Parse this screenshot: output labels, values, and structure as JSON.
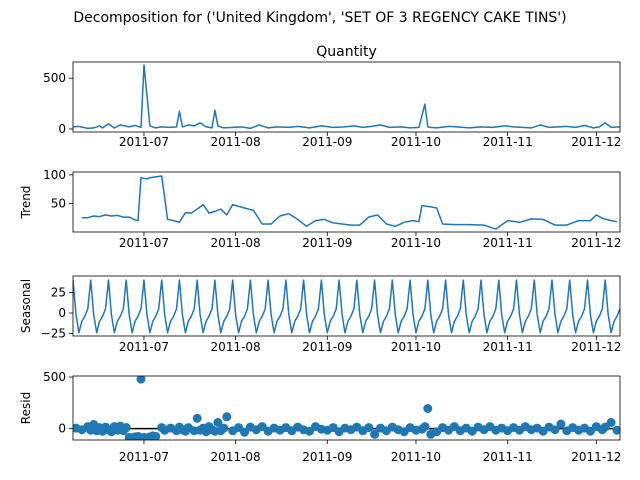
{
  "figure": {
    "suptitle": "Decomposition for ('United Kingdom', 'SET OF 3 REGENCY CAKE TINS')",
    "line_color": "#1f77b4",
    "x_ticks": [
      "2011-07",
      "2011-08",
      "2011-09",
      "2011-10",
      "2011-11",
      "2011-12"
    ]
  },
  "chart_data": [
    {
      "type": "line",
      "title": "Quantity",
      "ylabel": "",
      "x_range": [
        "2011-06-07",
        "2011-12-09"
      ],
      "ylim": [
        -30,
        660
      ],
      "yticks": [
        "0",
        "500"
      ],
      "ytick_values": [
        0,
        500
      ],
      "series": [
        {
          "x": [
            "2011-06-07",
            "2011-06-09",
            "2011-06-12",
            "2011-06-14",
            "2011-06-16",
            "2011-06-17",
            "2011-06-19",
            "2011-06-21",
            "2011-06-23",
            "2011-06-26",
            "2011-06-28",
            "2011-06-30",
            "2011-07-01",
            "2011-07-03",
            "2011-07-05",
            "2011-07-07",
            "2011-07-10",
            "2011-07-12",
            "2011-07-13",
            "2011-07-14",
            "2011-07-16",
            "2011-07-18",
            "2011-07-20",
            "2011-07-22",
            "2011-07-24",
            "2011-07-25",
            "2011-07-26",
            "2011-07-28",
            "2011-07-31",
            "2011-08-03",
            "2011-08-06",
            "2011-08-09",
            "2011-08-12",
            "2011-08-15",
            "2011-08-19",
            "2011-08-22",
            "2011-08-26",
            "2011-08-30",
            "2011-09-03",
            "2011-09-07",
            "2011-09-10",
            "2011-09-13",
            "2011-09-16",
            "2011-09-19",
            "2011-09-22",
            "2011-09-26",
            "2011-09-29",
            "2011-10-02",
            "2011-10-04",
            "2011-10-05",
            "2011-10-06",
            "2011-10-08",
            "2011-10-12",
            "2011-10-15",
            "2011-10-19",
            "2011-10-23",
            "2011-10-27",
            "2011-10-31",
            "2011-11-03",
            "2011-11-06",
            "2011-11-09",
            "2011-11-12",
            "2011-11-15",
            "2011-11-18",
            "2011-11-21",
            "2011-11-24",
            "2011-11-27",
            "2011-11-30",
            "2011-12-02",
            "2011-12-04",
            "2011-12-06",
            "2011-12-09"
          ],
          "y": [
            20,
            25,
            5,
            10,
            30,
            10,
            50,
            10,
            40,
            20,
            35,
            15,
            630,
            30,
            10,
            20,
            15,
            20,
            175,
            20,
            40,
            30,
            60,
            20,
            10,
            185,
            30,
            10,
            15,
            20,
            5,
            40,
            10,
            20,
            15,
            25,
            10,
            30,
            15,
            20,
            30,
            15,
            25,
            40,
            15,
            20,
            10,
            15,
            245,
            20,
            15,
            10,
            25,
            20,
            10,
            20,
            15,
            30,
            20,
            15,
            10,
            40,
            15,
            20,
            25,
            15,
            35,
            10,
            20,
            60,
            15,
            20
          ]
        }
      ]
    },
    {
      "type": "line",
      "title": "",
      "ylabel": "Trend",
      "x_range": [
        "2011-06-07",
        "2011-12-09"
      ],
      "ylim": [
        0,
        105
      ],
      "yticks": [
        "50",
        "100"
      ],
      "ytick_values": [
        50,
        100
      ],
      "series": [
        {
          "x": [
            "2011-06-10",
            "2011-06-12",
            "2011-06-14",
            "2011-06-16",
            "2011-06-18",
            "2011-06-20",
            "2011-06-22",
            "2011-06-24",
            "2011-06-26",
            "2011-06-28",
            "2011-06-29",
            "2011-06-30",
            "2011-07-02",
            "2011-07-03",
            "2011-07-07",
            "2011-07-09",
            "2011-07-11",
            "2011-07-13",
            "2011-07-15",
            "2011-07-17",
            "2011-07-19",
            "2011-07-21",
            "2011-07-23",
            "2011-07-25",
            "2011-07-27",
            "2011-07-29",
            "2011-07-31",
            "2011-08-04",
            "2011-08-07",
            "2011-08-10",
            "2011-08-13",
            "2011-08-16",
            "2011-08-19",
            "2011-08-22",
            "2011-08-25",
            "2011-08-28",
            "2011-08-31",
            "2011-09-03",
            "2011-09-06",
            "2011-09-09",
            "2011-09-12",
            "2011-09-15",
            "2011-09-18",
            "2011-09-21",
            "2011-09-24",
            "2011-09-27",
            "2011-09-30",
            "2011-10-02",
            "2011-10-03",
            "2011-10-06",
            "2011-10-08",
            "2011-10-10",
            "2011-10-14",
            "2011-10-19",
            "2011-10-24",
            "2011-10-28",
            "2011-11-01",
            "2011-11-05",
            "2011-11-09",
            "2011-11-13",
            "2011-11-17",
            "2011-11-21",
            "2011-11-25",
            "2011-11-29",
            "2011-12-01",
            "2011-12-03",
            "2011-12-06",
            "2011-12-08"
          ],
          "y": [
            25,
            25,
            28,
            27,
            30,
            28,
            29,
            26,
            26,
            21,
            20,
            95,
            93,
            95,
            98,
            22,
            20,
            17,
            34,
            33,
            40,
            48,
            33,
            36,
            40,
            30,
            48,
            42,
            38,
            14,
            14,
            28,
            32,
            22,
            10,
            20,
            22,
            16,
            14,
            12,
            12,
            26,
            30,
            14,
            10,
            17,
            20,
            18,
            46,
            44,
            42,
            14,
            13,
            13,
            12,
            5,
            20,
            17,
            23,
            22,
            12,
            12,
            20,
            20,
            30,
            24,
            20,
            18
          ]
        }
      ]
    },
    {
      "type": "line",
      "title": "",
      "ylabel": "Seasonal",
      "x_range": [
        "2011-06-07",
        "2011-12-09"
      ],
      "ylim": [
        -28,
        45
      ],
      "yticks": [
        "25",
        "0",
        "−25"
      ],
      "ytick_values": [
        25,
        0,
        -25
      ],
      "period_days": 6,
      "pattern": [
        40,
        -2,
        -24,
        -10,
        -4,
        5
      ],
      "series": [
        {
          "name": "",
          "values": []
        }
      ]
    },
    {
      "type": "scatter",
      "title": "",
      "ylabel": "Resid",
      "x_range": [
        "2011-06-07",
        "2011-12-09"
      ],
      "ylim": [
        -110,
        510
      ],
      "yticks": [
        "0",
        "500"
      ],
      "ytick_values": [
        0,
        500
      ],
      "baseline": 0,
      "series": [
        {
          "x": [
            "2011-06-08",
            "2011-06-10",
            "2011-06-12",
            "2011-06-13",
            "2011-06-14",
            "2011-06-15",
            "2011-06-16",
            "2011-06-17",
            "2011-06-18",
            "2011-06-19",
            "2011-06-20",
            "2011-06-21",
            "2011-06-22",
            "2011-06-23",
            "2011-06-24",
            "2011-06-25",
            "2011-06-26",
            "2011-06-27",
            "2011-06-28",
            "2011-06-29",
            "2011-06-30",
            "2011-07-01",
            "2011-07-02",
            "2011-07-03",
            "2011-07-04",
            "2011-07-05",
            "2011-07-07",
            "2011-07-08",
            "2011-07-10",
            "2011-07-12",
            "2011-07-13",
            "2011-07-14",
            "2011-07-15",
            "2011-07-16",
            "2011-07-18",
            "2011-07-19",
            "2011-07-20",
            "2011-07-21",
            "2011-07-22",
            "2011-07-23",
            "2011-07-24",
            "2011-07-25",
            "2011-07-26",
            "2011-07-27",
            "2011-07-28",
            "2011-07-29",
            "2011-07-31",
            "2011-08-02",
            "2011-08-04",
            "2011-08-06",
            "2011-08-08",
            "2011-08-10",
            "2011-08-12",
            "2011-08-14",
            "2011-08-16",
            "2011-08-18",
            "2011-08-20",
            "2011-08-22",
            "2011-08-24",
            "2011-08-26",
            "2011-08-28",
            "2011-08-30",
            "2011-09-01",
            "2011-09-03",
            "2011-09-05",
            "2011-09-07",
            "2011-09-09",
            "2011-09-11",
            "2011-09-13",
            "2011-09-15",
            "2011-09-17",
            "2011-09-19",
            "2011-09-21",
            "2011-09-23",
            "2011-09-25",
            "2011-09-27",
            "2011-09-29",
            "2011-10-01",
            "2011-10-03",
            "2011-10-04",
            "2011-10-05",
            "2011-10-06",
            "2011-10-08",
            "2011-10-10",
            "2011-10-12",
            "2011-10-14",
            "2011-10-16",
            "2011-10-18",
            "2011-10-20",
            "2011-10-22",
            "2011-10-24",
            "2011-10-26",
            "2011-10-28",
            "2011-10-30",
            "2011-11-01",
            "2011-11-03",
            "2011-11-05",
            "2011-11-07",
            "2011-11-09",
            "2011-11-11",
            "2011-11-13",
            "2011-11-15",
            "2011-11-17",
            "2011-11-19",
            "2011-11-21",
            "2011-11-23",
            "2011-11-25",
            "2011-11-27",
            "2011-11-29",
            "2011-12-01",
            "2011-12-03",
            "2011-12-04",
            "2011-12-06",
            "2011-12-08"
          ],
          "y": [
            5,
            -10,
            20,
            -15,
            40,
            -20,
            10,
            -25,
            15,
            -10,
            -30,
            20,
            -15,
            25,
            -20,
            10,
            -85,
            -90,
            -80,
            -75,
            480,
            -85,
            -90,
            -80,
            -70,
            -75,
            10,
            -15,
            5,
            -20,
            15,
            -10,
            -25,
            10,
            -20,
            100,
            -15,
            5,
            -30,
            20,
            -10,
            -25,
            60,
            -20,
            5,
            115,
            -20,
            10,
            -35,
            15,
            -10,
            20,
            -25,
            5,
            -15,
            10,
            -20,
            15,
            -10,
            -25,
            20,
            -5,
            -15,
            10,
            -30,
            5,
            -10,
            15,
            -20,
            10,
            -55,
            5,
            -20,
            15,
            -10,
            -30,
            10,
            -15,
            -5,
            20,
            195,
            -55,
            -30,
            10,
            -15,
            20,
            -20,
            5,
            -25,
            15,
            -10,
            20,
            -15,
            5,
            -20,
            10,
            -15,
            20,
            -10,
            5,
            -25,
            15,
            -10,
            45,
            -20,
            10,
            -15,
            5,
            -25,
            20,
            -10,
            15,
            60,
            -15
          ]
        }
      ]
    }
  ]
}
